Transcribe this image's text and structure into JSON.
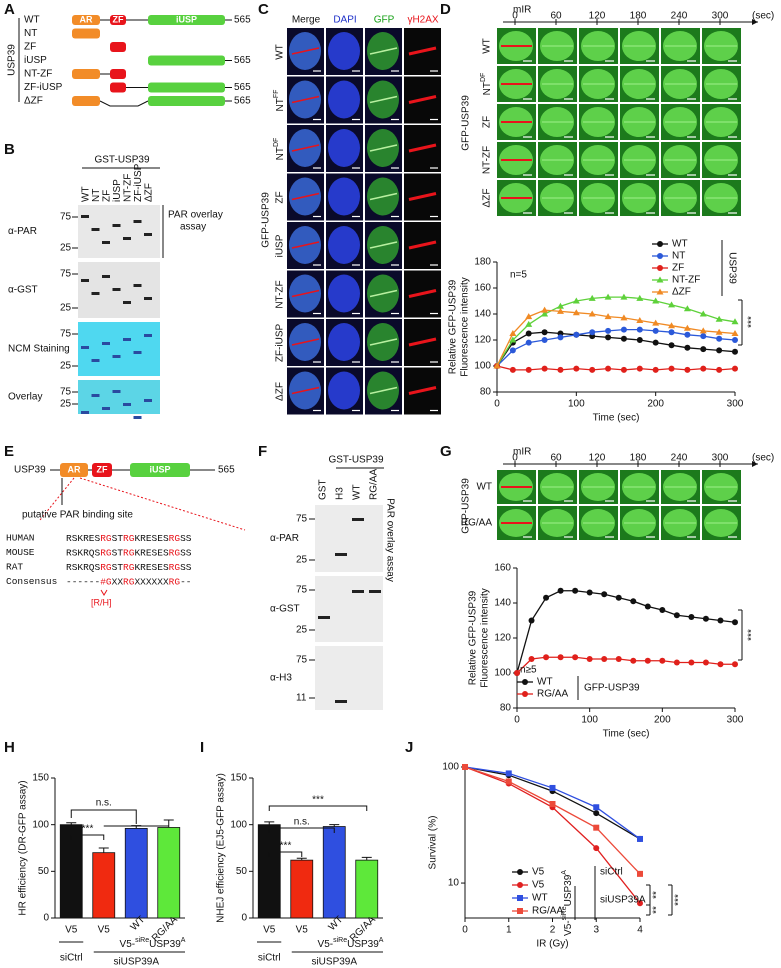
{
  "panel_labels": [
    "A",
    "B",
    "C",
    "D",
    "E",
    "F",
    "G",
    "H",
    "I",
    "J"
  ],
  "panel_a": {
    "group": "USP39",
    "rows": [
      "WT",
      "NT",
      "ZF",
      "iUSP",
      "NT-ZF",
      "ZF-iUSP",
      "ΔZF"
    ],
    "domains": [
      "AR",
      "ZF",
      "iUSP"
    ],
    "length": "565"
  },
  "panel_b": {
    "title": "GST-USP39",
    "lanes": [
      "WT",
      "NT",
      "ZF",
      "iUSP",
      "NT-ZF",
      "ZF-iUSP",
      "ΔZF"
    ],
    "rows": [
      "α-PAR",
      "α-GST",
      "NCM Staining",
      "Overlay"
    ],
    "note": [
      "PAR overlay",
      "assay"
    ],
    "markers": [
      "75",
      "25"
    ]
  },
  "panel_c": {
    "columns": [
      "Merge",
      "DAPI",
      "GFP",
      "γH2AX"
    ],
    "rows": [
      "WT",
      {
        "main": "NT",
        "sup": "FF"
      },
      {
        "main": "NT",
        "sup": "DF"
      },
      "ZF",
      "iUSP",
      "NT-ZF",
      "ZF-iUSP",
      "ΔZF"
    ],
    "group": "GFP-USP39"
  },
  "panel_d": {
    "label": "mIR",
    "times": [
      "0",
      "60",
      "120",
      "180",
      "240",
      "300"
    ],
    "unit": "(sec)",
    "rows": [
      "WT",
      {
        "main": "NT",
        "sup": "DF"
      },
      "ZF",
      "NT-ZF",
      "ΔZF"
    ],
    "group": "GFP-USP39"
  },
  "panel_e": {
    "protein": "USP39",
    "domains": [
      "AR",
      "ZF",
      "iUSP"
    ],
    "length": "565",
    "site": "putative PAR binding site",
    "species": [
      {
        "name": "HUMAN",
        "seq": [
          "RSKRES",
          "RG",
          "ST",
          "RG",
          "KRESES",
          "RG",
          "SS"
        ]
      },
      {
        "name": "MOUSE",
        "seq": [
          "RSKRQS",
          "RG",
          "ST",
          "RG",
          "KRESES",
          "RG",
          "SS"
        ]
      },
      {
        "name": "RAT",
        "seq": [
          "RSKRQS",
          "RG",
          "ST",
          "RG",
          "KRESES",
          "RG",
          "SS"
        ]
      },
      {
        "name": "Consensus",
        "seq": [
          "------",
          "#G",
          "XX",
          "RG",
          "XXXXXX",
          "RG",
          "--"
        ]
      }
    ],
    "footnote": "[R/H]"
  },
  "panel_f": {
    "title": "GST-USP39",
    "lanes": [
      "GST",
      "H3",
      "WT",
      "RG/AA"
    ],
    "rows": [
      "α-PAR",
      "α-GST",
      "α-H3"
    ],
    "note": "PAR overlay assay",
    "markers": [
      [
        "75",
        "25"
      ],
      [
        "75",
        "25"
      ],
      [
        "75",
        "11"
      ]
    ]
  },
  "panel_g": {
    "label": "mIR",
    "times": [
      "0",
      "60",
      "120",
      "180",
      "240",
      "300"
    ],
    "unit": "(sec)",
    "rows": [
      "WT",
      "RG/AA"
    ],
    "group": "GFP-USP39"
  },
  "chart_data": [
    {
      "type": "line",
      "ylabel": [
        "Relative GFP-USP39",
        "Fluorescence intensity"
      ],
      "xlabel": "Time (sec)",
      "x": [
        0,
        20,
        40,
        60,
        80,
        100,
        120,
        140,
        160,
        180,
        200,
        220,
        240,
        260,
        280,
        300
      ],
      "xlim": [
        0,
        300
      ],
      "xticks": [
        0,
        100,
        200,
        300
      ],
      "ylim": [
        80,
        180
      ],
      "yticks": [
        80,
        100,
        120,
        140,
        160,
        180
      ],
      "legend_title": "USP39",
      "annotations": [
        "n=5",
        "***"
      ],
      "series": [
        {
          "name": "WT",
          "color": "#111111",
          "marker": "circle",
          "values": [
            100,
            118,
            125,
            126,
            125,
            124,
            123,
            122,
            121,
            120,
            118,
            116,
            114,
            113,
            112,
            111
          ]
        },
        {
          "name": "NT",
          "color": "#2b59d9",
          "marker": "circle",
          "values": [
            100,
            112,
            118,
            120,
            122,
            124,
            126,
            127,
            128,
            128,
            127,
            126,
            124,
            123,
            121,
            120
          ]
        },
        {
          "name": "ZF",
          "color": "#e0201b",
          "marker": "circle",
          "values": [
            100,
            97,
            97,
            98,
            97,
            98,
            97,
            98,
            97,
            98,
            97,
            98,
            97,
            98,
            97,
            98
          ]
        },
        {
          "name": "NT-ZF",
          "color": "#5ed13a",
          "marker": "triangle",
          "values": [
            100,
            120,
            132,
            140,
            146,
            150,
            152,
            153,
            153,
            152,
            150,
            147,
            144,
            140,
            136,
            134
          ]
        },
        {
          "name": "ΔZF",
          "color": "#f08a24",
          "marker": "triangle",
          "values": [
            100,
            125,
            138,
            143,
            142,
            141,
            140,
            138,
            137,
            135,
            133,
            131,
            129,
            127,
            126,
            125
          ]
        }
      ]
    },
    {
      "type": "line",
      "ylabel": [
        "Relative GFP-USP39",
        "Fluorescence intensity"
      ],
      "xlabel": "Time (sec)",
      "x": [
        0,
        20,
        40,
        60,
        80,
        100,
        120,
        140,
        160,
        180,
        200,
        220,
        240,
        260,
        280,
        300
      ],
      "xlim": [
        0,
        300
      ],
      "xticks": [
        0,
        100,
        200,
        300
      ],
      "ylim": [
        80,
        160
      ],
      "yticks": [
        80,
        100,
        120,
        140,
        160
      ],
      "legend_title": "GFP-USP39",
      "annotations": [
        "n≥5",
        "***"
      ],
      "series": [
        {
          "name": "WT",
          "color": "#111111",
          "marker": "circle",
          "values": [
            100,
            130,
            143,
            147,
            147,
            146,
            145,
            143,
            141,
            138,
            136,
            133,
            132,
            131,
            130,
            129
          ]
        },
        {
          "name": "RG/AA",
          "color": "#e0201b",
          "marker": "circle",
          "values": [
            100,
            108,
            109,
            109,
            109,
            108,
            108,
            108,
            107,
            107,
            107,
            106,
            106,
            106,
            105,
            105
          ]
        }
      ]
    },
    {
      "type": "bar",
      "ylabel": "HR efficiency (DR-GFP assay)",
      "categories": [
        "V5",
        "V5",
        "WT",
        "RG/AA"
      ],
      "values": [
        100,
        70,
        96,
        97
      ],
      "errors": [
        2,
        5,
        3,
        8
      ],
      "colors": [
        "#111111",
        "#f02a10",
        "#2f4fe0",
        "#5ee83a"
      ],
      "ylim": [
        0,
        150
      ],
      "yticks": [
        0,
        50,
        100,
        150
      ],
      "annotations": [
        "***",
        "n.s."
      ],
      "groups": {
        "ctrl": "siCtrl",
        "construct": [
          "V5-",
          "siRe",
          "USP39",
          "A"
        ],
        "knockdown": "siUSP39A"
      }
    },
    {
      "type": "bar",
      "ylabel": "NHEJ efficiency (EJ5-GFP assay)",
      "categories": [
        "V5",
        "V5",
        "WT",
        "RG/AA"
      ],
      "values": [
        100,
        62,
        98,
        62
      ],
      "errors": [
        3,
        2,
        2,
        3
      ],
      "colors": [
        "#111111",
        "#f02a10",
        "#2f4fe0",
        "#5ee83a"
      ],
      "ylim": [
        0,
        150
      ],
      "yticks": [
        0,
        50,
        100,
        150
      ],
      "annotations": [
        "***",
        "n.s.",
        "***"
      ],
      "groups": {
        "ctrl": "siCtrl",
        "construct": [
          "V5-",
          "siRe",
          "USP39",
          "A"
        ],
        "knockdown": "siUSP39A"
      }
    },
    {
      "type": "line",
      "log_y": true,
      "ylabel": [
        "Survival (%)"
      ],
      "xlabel": "IR (Gy)",
      "x": [
        0,
        1,
        2,
        3,
        4
      ],
      "xlim": [
        0,
        4
      ],
      "xticks": [
        0,
        1,
        2,
        3,
        4
      ],
      "ylim": [
        5,
        100
      ],
      "yticks": [
        10,
        100
      ],
      "annotations": [
        "**",
        "***",
        "**"
      ],
      "groups": {
        "ctrl": "siCtrl",
        "construct": [
          "V5-",
          "siRe",
          "USP39",
          "A"
        ],
        "knockdown": "siUSP39A"
      },
      "series": [
        {
          "name": "V5",
          "color": "#111111",
          "marker": "circle",
          "values": [
            100,
            85,
            62,
            40,
            24
          ]
        },
        {
          "name": "V5",
          "color": "#e02020",
          "marker": "circle",
          "values": [
            100,
            72,
            45,
            20,
            6.7
          ]
        },
        {
          "name": "WT",
          "color": "#2f4fe0",
          "marker": "square",
          "values": [
            100,
            88,
            66,
            45,
            24
          ]
        },
        {
          "name": "RG/AA",
          "color": "#ec4a3a",
          "marker": "square",
          "values": [
            100,
            75,
            48,
            30,
            12
          ]
        }
      ]
    }
  ]
}
